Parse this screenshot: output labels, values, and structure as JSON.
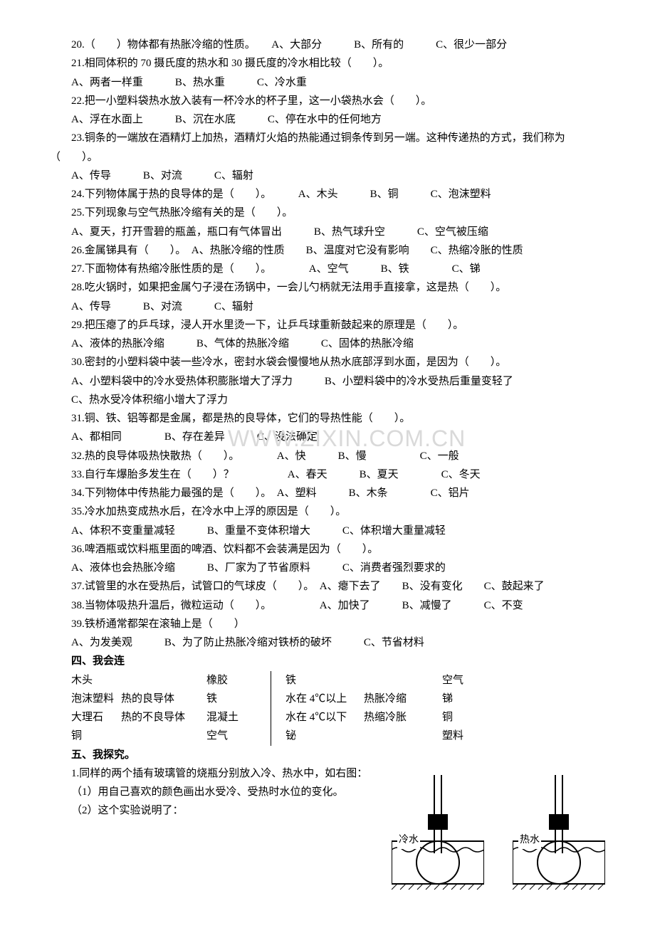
{
  "questions": [
    {
      "n": "20",
      "t": "（　　）物体都有热胀冷缩的性质。　　A、大部分　　　B、所有的　　　C、很少一部分"
    },
    {
      "n": "21",
      "t": "相同体积的 70 摄氏度的热水和 30 摄氏度的冷水相比较（　　）。"
    },
    {
      "opts": "A、两者一样重　　　B、热水重　　　C、冷水重"
    },
    {
      "n": "22",
      "t": "把一小塑料袋热水放入装有一杯冷水的杯子里，这一小袋热水会（　　）。"
    },
    {
      "opts": "A、浮在水面上　　　B、沉在水底　　　C、停在水中的任何地方"
    },
    {
      "n": "23",
      "t": "铜条的一端放在酒精灯上加热，酒精灯火焰的热能通过铜条传到另一端。这种传递热的方式，我们称为（　　）。",
      "full": true
    },
    {
      "opts": "A、传导　　　B、对流　　　C、辐射"
    },
    {
      "n": "24",
      "t": "下列物体属于热的良导体的是（　　）。　　　A、木头　　　B、铜　　　C、泡沫塑料"
    },
    {
      "n": "25",
      "t": "下列现象与空气热胀冷缩有关的是（　　）。"
    },
    {
      "opts": "A、夏天，打开雪碧的瓶盖，瓶口有气体冒出　　　B、热气球升空　　　C、空气被压缩"
    },
    {
      "n": "26",
      "t": "金属锑具有（　　）。　A、热胀冷缩的性质　　B、温度对它没有影响　　C、热缩冷胀的性质"
    },
    {
      "n": "27",
      "t": "下面物体有热缩冷胀性质的是（　　）。　　　　A、空气　　　B、铁　　　　C、锑"
    },
    {
      "n": "28",
      "t": "吃火锅时，如果把金属勺子浸在汤锅中，一会儿勺柄就无法用手直接拿，这是热（　　）。"
    },
    {
      "opts": "A、传导　　　B、对流　　　C、辐射"
    },
    {
      "n": "29",
      "t": "把压瘪了的乒乓球，浸人开水里烫一下，让乒乓球重新鼓起来的原理是（　　）。"
    },
    {
      "opts": "A、液体的热胀冷缩　　　B、气体的热胀冷缩　　　C、固体的热胀冷缩"
    },
    {
      "n": "30",
      "t": "密封的小塑料袋中装一些冷水，密封水袋会慢慢地从热水底部浮到水面，是因为（　　）。"
    },
    {
      "opts": "A、小塑料袋中的冷水受热体积膨胀增大了浮力　　　B、小塑料袋中的冷水受热后重量变轻了"
    },
    {
      "opts": "C、热水受冷体积缩小增大了浮力"
    },
    {
      "n": "31",
      "t": "铜、铁、铝等都是金属，都是热的良导体，它们的导热性能（　　）。"
    },
    {
      "opts": "A、都相同　　　　B、存在差异　　　C、没法确定"
    },
    {
      "n": "32",
      "t": "热的良导体吸热快散热（　　）。　　　　A、快　　　B、慢　　　　　C、一般"
    },
    {
      "n": "33",
      "t": "自行车爆胎多发生在（　　）？　　　　　A、春天　　　B、夏天　　　　C、冬天"
    },
    {
      "n": "34",
      "t": "下列物体中传热能力最强的是（　　）。　A、塑料　　　B、木条　　　　C、铝片"
    },
    {
      "n": "35",
      "t": "冷水加热变成热水后，在冷水中上浮的原因是（　　）。"
    },
    {
      "opts": "A、体积不变重量减轻　　　B、重量不变体积增大　　　C、体积增大重量减轻"
    },
    {
      "n": "36",
      "t": "啤酒瓶或饮料瓶里面的啤酒、饮料都不会装满是因为（　　）。"
    },
    {
      "opts": "A、液体也会热胀冷缩　　　B、厂家为了节省原料　　　C、消费者强烈要求的"
    },
    {
      "n": "37",
      "t": "试管里的水在受热后，试管口的气球皮（　　）。　A、瘪下去了　　B、没有变化　　C、鼓起来了"
    },
    {
      "n": "38",
      "t": "当物体吸热升温后，微粒运动（　　）。　　　　　A、加快了　　　B、减慢了　　　C、不变"
    },
    {
      "n": "39",
      "t": "铁桥通常都架在滚轴上是（　　）"
    },
    {
      "opts": "A、为发美观　　　B、为了防止热胀冷缩对铁桥的破坏　　　C、节省材料"
    }
  ],
  "sec4_title": "四、我会连",
  "match_rows": [
    [
      "木头",
      "",
      "橡胶",
      "铁",
      "",
      "空气"
    ],
    [
      "泡沫塑料",
      "热的良导体",
      "铁",
      "水在 4℃以上",
      "热胀冷缩",
      "锑"
    ],
    [
      "大理石",
      "热的不良导体",
      "混凝土",
      "水在 4℃以下",
      "热缩冷胀",
      "铜"
    ],
    [
      "铜",
      "",
      "空气",
      "铋",
      "",
      "塑料"
    ]
  ],
  "sec5_title": "五、我探究。",
  "exp": {
    "intro": "1.同样的两个插有玻璃管的烧瓶分别放入冷、热水中，如右图：",
    "q1": "（1）用自己喜欢的颜色画出水受冷、受热时水位的变化。",
    "q2": "（2）这个实验说明了：",
    "cold_label": "冷水",
    "hot_label": "热水"
  },
  "watermark": "WWW.ZIXIN.COM.CN"
}
